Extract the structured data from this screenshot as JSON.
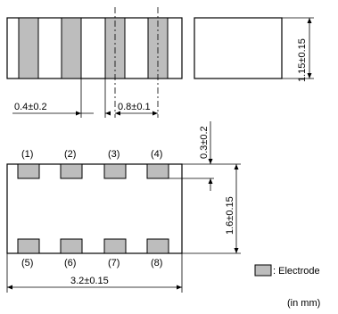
{
  "colors": {
    "electrode": "#bdbdbd",
    "outline": "#000000",
    "background": "#ffffff"
  },
  "top_view": {
    "dim_pitch": "0.4±0.2",
    "dim_width": "0.8±0.1"
  },
  "side_view": {
    "dim_height": "1.15±0.15"
  },
  "bottom_view": {
    "pin_labels_top": [
      "(1)",
      "(2)",
      "(3)",
      "(4)"
    ],
    "pin_labels_bottom": [
      "(5)",
      "(6)",
      "(7)",
      "(8)"
    ],
    "dim_electrode_length": "0.3±0.2",
    "dim_width": "1.6±0.15",
    "dim_length": "3.2±0.15"
  },
  "legend": {
    "electrode_label": ": Electrode"
  },
  "unit_note": "(in mm)"
}
